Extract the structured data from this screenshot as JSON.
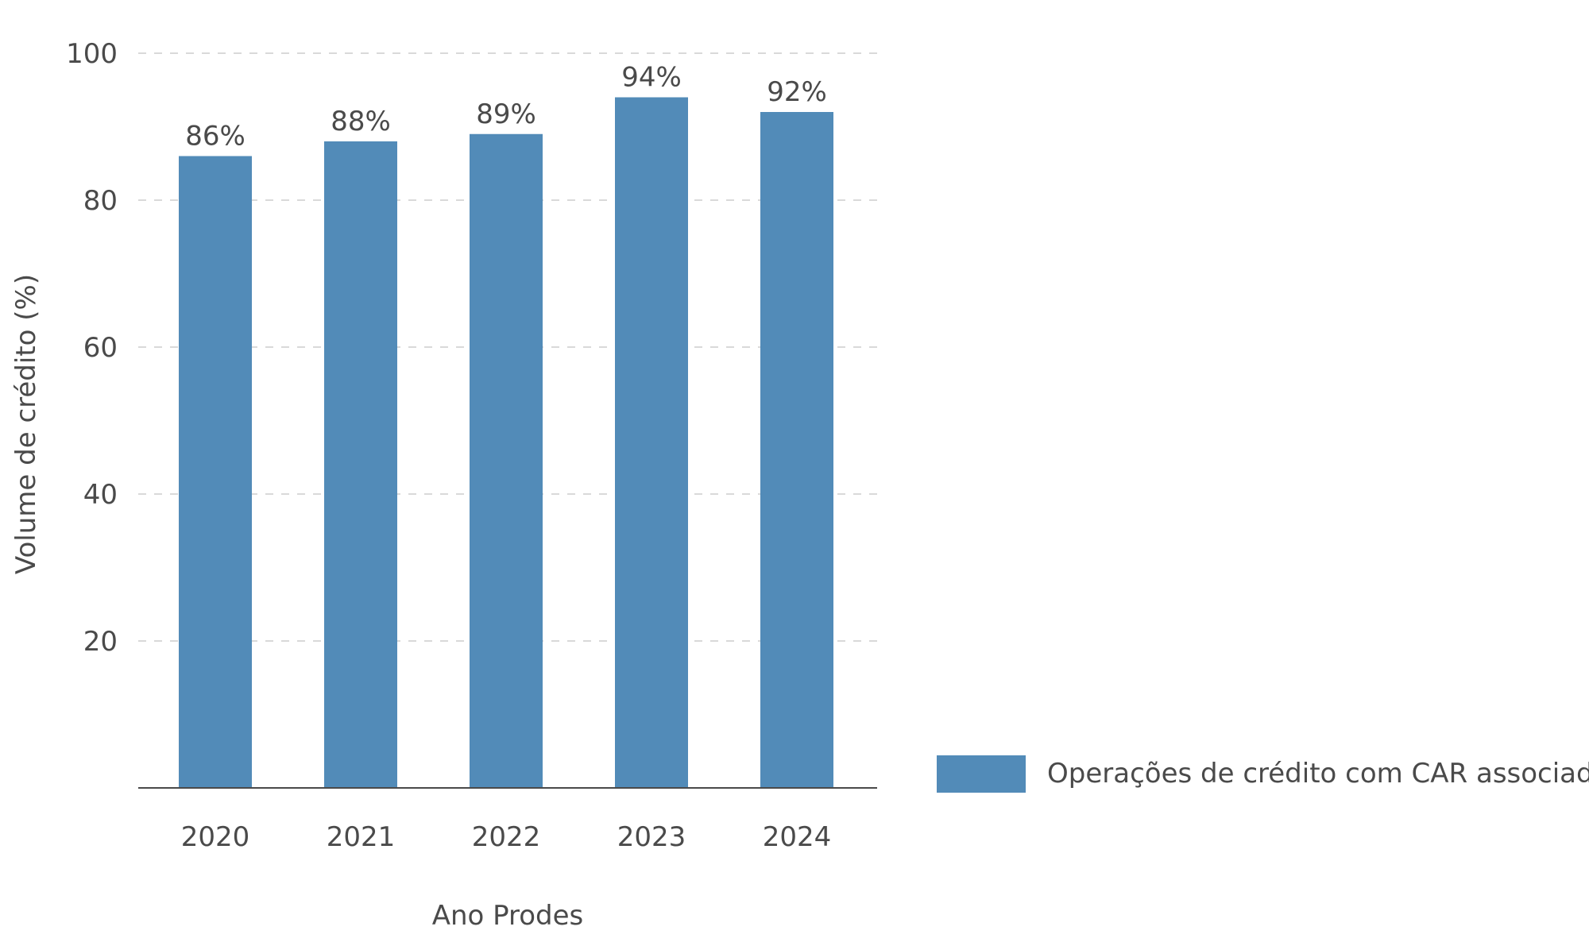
{
  "chart_data": {
    "type": "bar",
    "categories": [
      "2020",
      "2021",
      "2022",
      "2023",
      "2024"
    ],
    "series": [
      {
        "name": "Operações de crédito com CAR associado",
        "values": [
          86,
          88,
          89,
          94,
          92
        ],
        "labels": [
          "86%",
          "88%",
          "89%",
          "94%",
          "92%"
        ],
        "color": "#528bb8"
      }
    ],
    "xlabel": "Ano Prodes",
    "ylabel": "Volume de crédito (%)",
    "ylim": [
      0,
      100
    ],
    "yticks": [
      20,
      40,
      60,
      80,
      100
    ],
    "grid": true,
    "legend_position": "right"
  },
  "colors": {
    "bar": "#528bb8",
    "text": "#4a4a4a",
    "grid": "#d9d9d9",
    "axis": "#4a4a4a"
  }
}
